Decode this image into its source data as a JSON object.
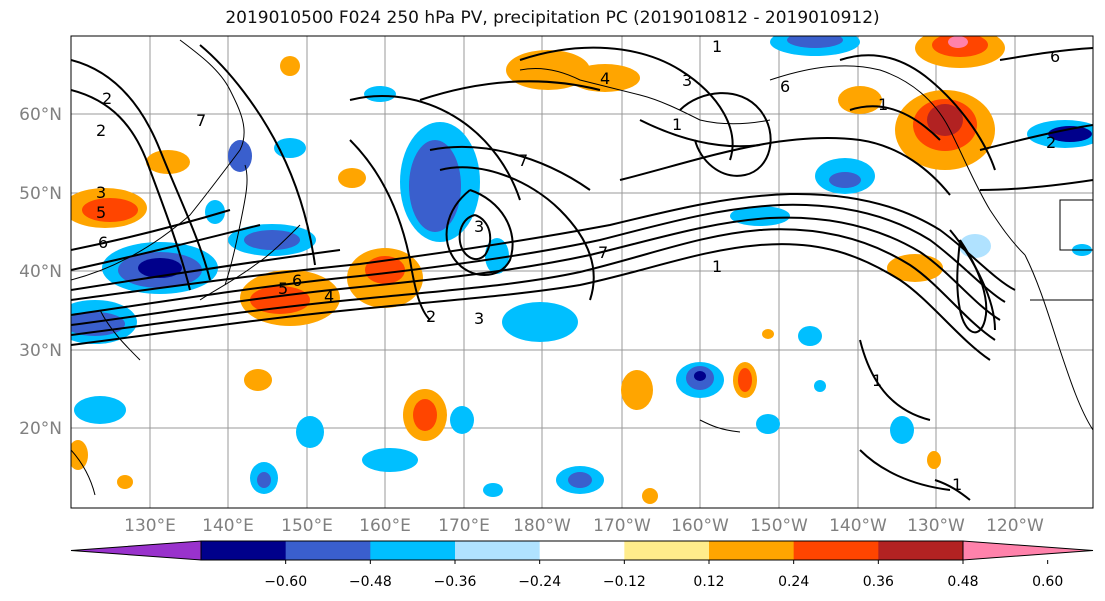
{
  "title": "2019010500 F024 250 hPa PV, precipitation PC (2019010812 - 2019010912)",
  "lat_labels": [
    "60°N",
    "50°N",
    "40°N",
    "30°N",
    "20°N"
  ],
  "lon_labels": [
    "130°E",
    "140°E",
    "150°E",
    "160°E",
    "170°E",
    "180°W",
    "170°W",
    "160°W",
    "150°W",
    "140°W",
    "130°W",
    "120°W"
  ],
  "colorbar": {
    "colors": [
      "#9932cc",
      "#00008b",
      "#3a5fcd",
      "#00bfff",
      "#b0e2ff",
      "#ffffff",
      "#ffec8b",
      "#ffa500",
      "#ff4500",
      "#b22222",
      "#ff82ab"
    ],
    "tick_labels": [
      "−0.60",
      "−0.48",
      "−0.36",
      "−0.24",
      "−0.12",
      "0.12",
      "0.24",
      "0.36",
      "0.48",
      "0.60"
    ]
  },
  "contour_labels": [
    "2",
    "2",
    "3",
    "5",
    "6",
    "7",
    "1",
    "4",
    "3",
    "1",
    "6",
    "7",
    "3",
    "7",
    "1",
    "1",
    "5",
    "6",
    "4",
    "2",
    "3",
    "6",
    "2",
    "1",
    "1"
  ]
}
